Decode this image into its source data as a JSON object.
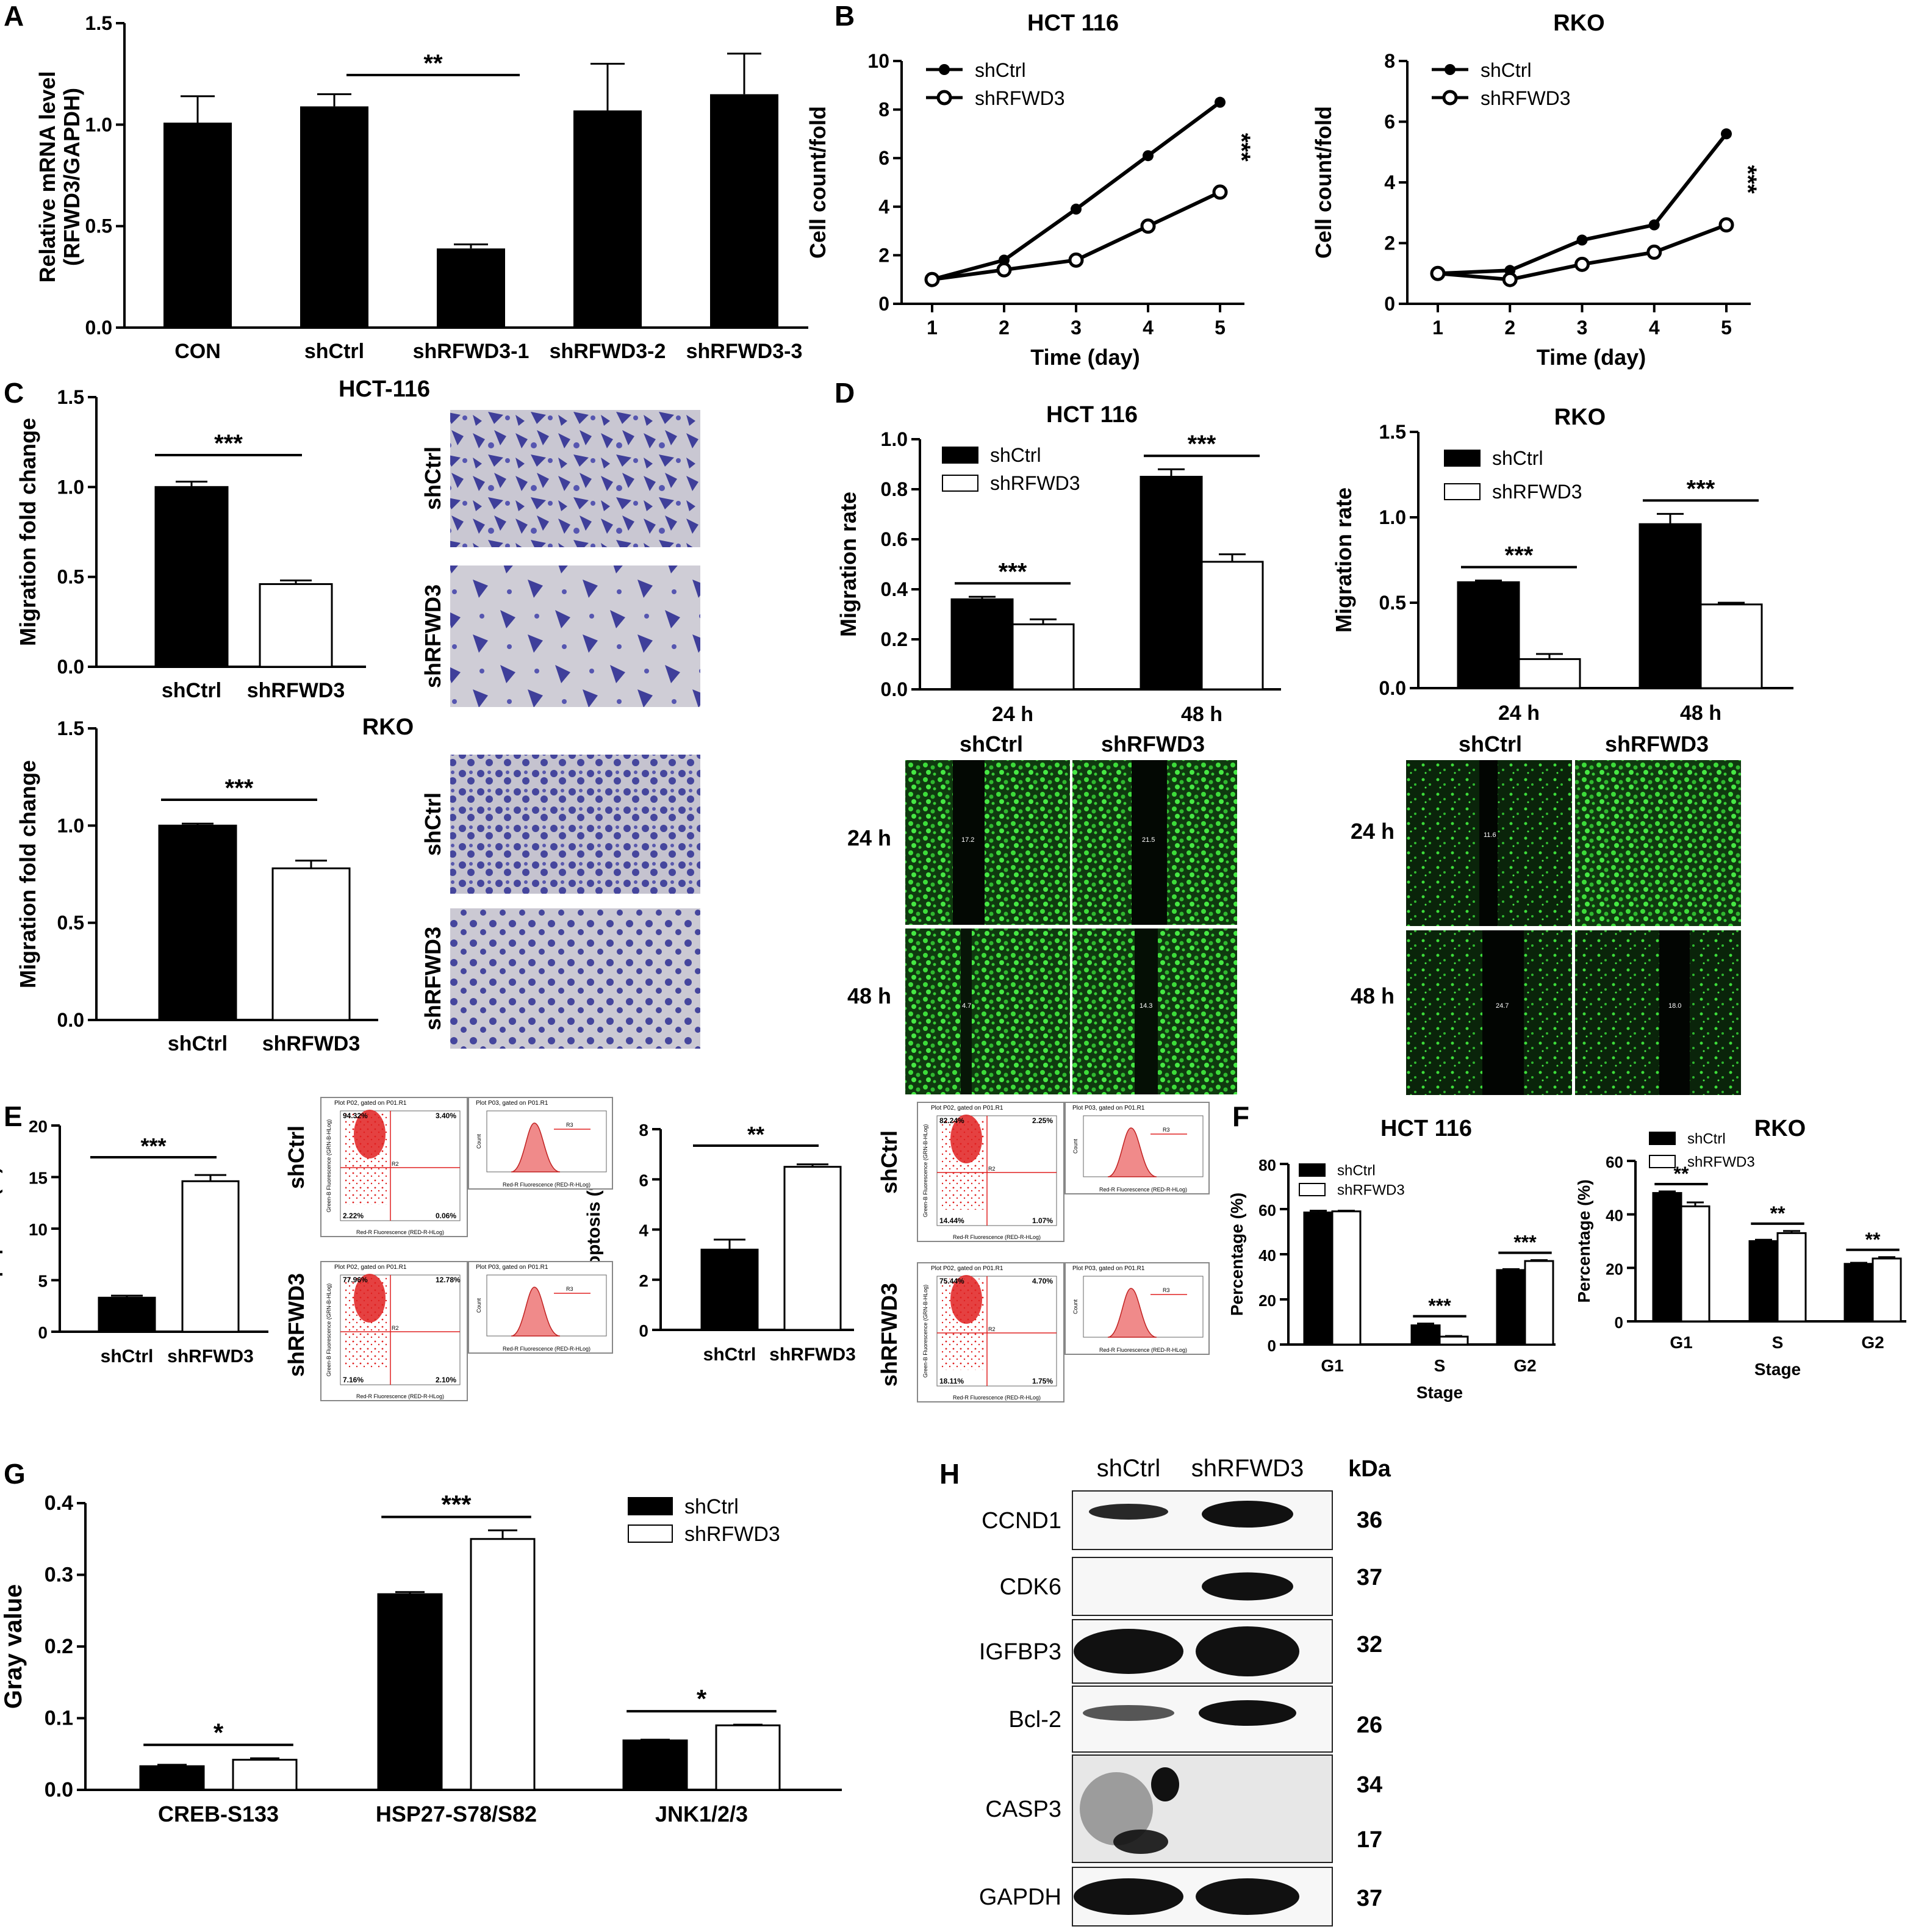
{
  "panels": {
    "A": "A",
    "B": "B",
    "C": "C",
    "D": "D",
    "E": "E",
    "F": "F",
    "G": "G",
    "H": "H"
  },
  "colors": {
    "black": "#000000",
    "white": "#ffffff",
    "crystal": "#4b4ca6",
    "crystal_bg": "#c8c6d0",
    "fluor": "#39d63b",
    "flow": "#e02020",
    "hist": "#f2a0a0"
  },
  "chart_data": [
    {
      "id": "A",
      "type": "bar",
      "categories": [
        "CON",
        "shCtrl",
        "shRFWD3-1",
        "shRFWD3-2",
        "shRFWD3-3"
      ],
      "values": [
        1.01,
        1.09,
        0.39,
        1.07,
        1.15
      ],
      "errors": [
        0.13,
        0.06,
        0.02,
        0.23,
        0.2
      ],
      "ylabel": [
        "Relative mRNA level",
        "(RFWD3/GAPDH)"
      ],
      "ylim": [
        0,
        1.5
      ],
      "yticks": [
        "0.0",
        "0.5",
        "1.0",
        "1.5"
      ],
      "significance": [
        {
          "between": [
            1,
            2
          ],
          "label": "**"
        }
      ]
    },
    {
      "id": "B1",
      "type": "line",
      "title": "HCT 116",
      "x": [
        1,
        2,
        3,
        4,
        5
      ],
      "xticks": [
        "1",
        "2",
        "3",
        "4",
        "5"
      ],
      "series": [
        {
          "name": "shCtrl",
          "values": [
            1.0,
            1.8,
            3.9,
            6.1,
            8.3
          ],
          "marker": "filled"
        },
        {
          "name": "shRFWD3",
          "values": [
            1.0,
            1.4,
            1.8,
            3.2,
            4.6
          ],
          "marker": "open"
        }
      ],
      "xlabel": "Time (day)",
      "ylabel": "Cell count/fold",
      "ylim": [
        0,
        10
      ],
      "yticks": [
        "0",
        "2",
        "4",
        "6",
        "8",
        "10"
      ],
      "annotation": "***",
      "legend": "top-left"
    },
    {
      "id": "B2",
      "type": "line",
      "title": "RKO",
      "x": [
        1,
        2,
        3,
        4,
        5
      ],
      "xticks": [
        "1",
        "2",
        "3",
        "4",
        "5"
      ],
      "series": [
        {
          "name": "shCtrl",
          "values": [
            1.0,
            1.1,
            2.1,
            2.6,
            5.6
          ],
          "marker": "filled"
        },
        {
          "name": "shRFWD3",
          "values": [
            1.0,
            0.8,
            1.3,
            1.7,
            2.6
          ],
          "marker": "open"
        }
      ],
      "xlabel": "Time (day)",
      "ylabel": "Cell count/fold",
      "ylim": [
        0,
        8
      ],
      "yticks": [
        "0",
        "2",
        "4",
        "6",
        "8"
      ],
      "annotation": "***",
      "legend": "top-left"
    },
    {
      "id": "C1",
      "type": "bar",
      "title": "HCT-116",
      "categories": [
        "shCtrl",
        "shRFWD3"
      ],
      "values": [
        1.0,
        0.46
      ],
      "errors": [
        0.03,
        0.02
      ],
      "fills": [
        "black",
        "white"
      ],
      "ylabel": "Migration fold change",
      "ylim": [
        0,
        1.5
      ],
      "yticks": [
        "0.0",
        "0.5",
        "1.0",
        "1.5"
      ],
      "significance": [
        {
          "between": [
            0,
            1
          ],
          "label": "***"
        }
      ]
    },
    {
      "id": "C2",
      "type": "bar",
      "title": "RKO",
      "categories": [
        "shCtrl",
        "shRFWD3"
      ],
      "values": [
        1.0,
        0.78
      ],
      "errors": [
        0.01,
        0.04
      ],
      "fills": [
        "black",
        "white"
      ],
      "ylabel": "Migration fold change",
      "ylim": [
        0,
        1.5
      ],
      "yticks": [
        "0.0",
        "0.5",
        "1.0",
        "1.5"
      ],
      "significance": [
        {
          "between": [
            0,
            1
          ],
          "label": "***"
        }
      ]
    },
    {
      "id": "D1",
      "type": "bar",
      "title": "HCT 116",
      "categories": [
        "24 h",
        "48 h"
      ],
      "series": [
        {
          "name": "shCtrl",
          "values": [
            0.36,
            0.85
          ],
          "errors": [
            0.01,
            0.03
          ]
        },
        {
          "name": "shRFWD3",
          "values": [
            0.26,
            0.51
          ],
          "errors": [
            0.02,
            0.03
          ]
        }
      ],
      "ylabel": "Migration rate",
      "ylim": [
        0,
        1.0
      ],
      "yticks": [
        "0.0",
        "0.2",
        "0.4",
        "0.6",
        "0.8",
        "1.0"
      ],
      "significance": [
        "***",
        "***"
      ],
      "legend": "top-left"
    },
    {
      "id": "D2",
      "type": "bar",
      "title": "RKO",
      "categories": [
        "24 h",
        "48 h"
      ],
      "series": [
        {
          "name": "shCtrl",
          "values": [
            0.62,
            0.96
          ],
          "errors": [
            0.01,
            0.06
          ]
        },
        {
          "name": "shRFWD3",
          "values": [
            0.17,
            0.49
          ],
          "errors": [
            0.03,
            0.01
          ]
        }
      ],
      "ylabel": "Migration rate",
      "ylim": [
        0,
        1.5
      ],
      "yticks": [
        "0.0",
        "0.5",
        "1.0",
        "1.5"
      ],
      "significance": [
        "***",
        "***"
      ],
      "legend": "top-left"
    },
    {
      "id": "E1",
      "type": "bar",
      "categories": [
        "shCtrl",
        "shRFWD3"
      ],
      "values": [
        3.3,
        14.6
      ],
      "errors": [
        0.2,
        0.6
      ],
      "fills": [
        "black",
        "white"
      ],
      "ylabel": "Apoptosis (%)",
      "ylim": [
        0,
        20
      ],
      "yticks": [
        "0",
        "5",
        "10",
        "15",
        "20"
      ],
      "significance": [
        {
          "between": [
            0,
            1
          ],
          "label": "***"
        }
      ]
    },
    {
      "id": "E2",
      "type": "bar",
      "categories": [
        "shCtrl",
        "shRFWD3"
      ],
      "values": [
        3.2,
        6.5
      ],
      "errors": [
        0.4,
        0.1
      ],
      "fills": [
        "black",
        "white"
      ],
      "ylabel": "Apoptosis (%)",
      "ylim": [
        0,
        8
      ],
      "yticks": [
        "0",
        "2",
        "4",
        "6",
        "8"
      ],
      "significance": [
        {
          "between": [
            0,
            1
          ],
          "label": "**"
        }
      ]
    },
    {
      "id": "F1",
      "type": "bar",
      "title": "HCT 116",
      "categories": [
        "G1",
        "S",
        "G2"
      ],
      "series": [
        {
          "name": "shCtrl",
          "values": [
            58.5,
            8.5,
            33
          ],
          "errors": [
            0.8,
            0.8,
            0.4
          ]
        },
        {
          "name": "shRFWD3",
          "values": [
            59,
            3.5,
            37
          ],
          "errors": [
            0.3,
            0.3,
            0.4
          ]
        }
      ],
      "xlabel": "Stage",
      "ylabel": "Percentage (%)",
      "ylim": [
        0,
        80
      ],
      "yticks": [
        "0",
        "20",
        "40",
        "60",
        "80"
      ],
      "significance": [
        "",
        "***",
        "***"
      ],
      "legend": "top-left"
    },
    {
      "id": "F2",
      "type": "bar",
      "title": "RKO",
      "categories": [
        "G1",
        "S",
        "G2"
      ],
      "series": [
        {
          "name": "shCtrl",
          "values": [
            48,
            30,
            21.5
          ],
          "errors": [
            0.6,
            0.5,
            0.4
          ]
        },
        {
          "name": "shRFWD3",
          "values": [
            43,
            33,
            23.5
          ],
          "errors": [
            1.5,
            0.8,
            0.5
          ]
        }
      ],
      "xlabel": "Stage",
      "ylabel": "Percentage (%)",
      "ylim": [
        0,
        60
      ],
      "yticks": [
        "0",
        "20",
        "40",
        "60"
      ],
      "significance": [
        "**",
        "**",
        "**"
      ],
      "legend": "top-left"
    },
    {
      "id": "G",
      "type": "bar",
      "categories": [
        "CREB-S133",
        "HSP27-S78/S82",
        "JNK1/2/3"
      ],
      "series": [
        {
          "name": "shCtrl",
          "values": [
            0.033,
            0.273,
            0.069
          ],
          "errors": [
            0.002,
            0.003,
            0.001
          ]
        },
        {
          "name": "shRFWD3",
          "values": [
            0.042,
            0.35,
            0.09
          ],
          "errors": [
            0.002,
            0.012,
            0.001
          ]
        }
      ],
      "ylabel": "Gray value",
      "ylim": [
        0,
        0.4
      ],
      "yticks": [
        "0.0",
        "0.1",
        "0.2",
        "0.3",
        "0.4"
      ],
      "significance": [
        "*",
        "***",
        "*"
      ],
      "legend": "top-right"
    }
  ],
  "panelC_images": {
    "row_labels": [
      "shCtrl",
      "shRFWD3"
    ]
  },
  "panelD_images": {
    "columns": [
      "shCtrl",
      "shRFWD3"
    ],
    "rows": [
      "24 h",
      "48 h"
    ],
    "gap_labels_hct": [
      "17.2",
      "21.5",
      "4.7",
      "14.3"
    ],
    "gap_labels_rko": [
      "11.6",
      "24.7",
      "18.0"
    ]
  },
  "panelE_flow": {
    "row_labels": [
      "shCtrl",
      "shRFWD3"
    ],
    "plot_title_dot": "Plot P02, gated on P01.R1",
    "plot_title_hist": "Plot P03, gated on P01.R1",
    "xaxis_dot": "Red-R Fluorescence (RED-R-HLog)",
    "yaxis_dot": "Green-B Fluorescence (GRN-B-HLog)",
    "xaxis_hist": "Red-R Fluorescence (RED-R-HLog)",
    "yaxis_hist": "Count",
    "quads": [
      [
        "94.32%",
        "3.40%",
        "2.22%",
        "0.06%"
      ],
      [
        "77.96%",
        "12.78%",
        "7.16%",
        "2.10%"
      ],
      [
        "82.24%",
        "2.25%",
        "14.44%",
        "1.07%"
      ],
      [
        "75.44%",
        "4.70%",
        "18.11%",
        "1.75%"
      ]
    ],
    "region_dot": "R2",
    "region_hist": "R3"
  },
  "panelH": {
    "columns": [
      "shCtrl",
      "shRFWD3"
    ],
    "kda_header": "kDa",
    "rows": [
      {
        "name": "CCND1",
        "kda": [
          "36"
        ]
      },
      {
        "name": "CDK6",
        "kda": [
          "37"
        ]
      },
      {
        "name": "IGFBP3",
        "kda": [
          "32"
        ]
      },
      {
        "name": "Bcl-2",
        "kda": [
          "26"
        ]
      },
      {
        "name": "CASP3",
        "kda": [
          "34",
          "17"
        ]
      },
      {
        "name": "GAPDH",
        "kda": [
          "37"
        ]
      }
    ]
  }
}
